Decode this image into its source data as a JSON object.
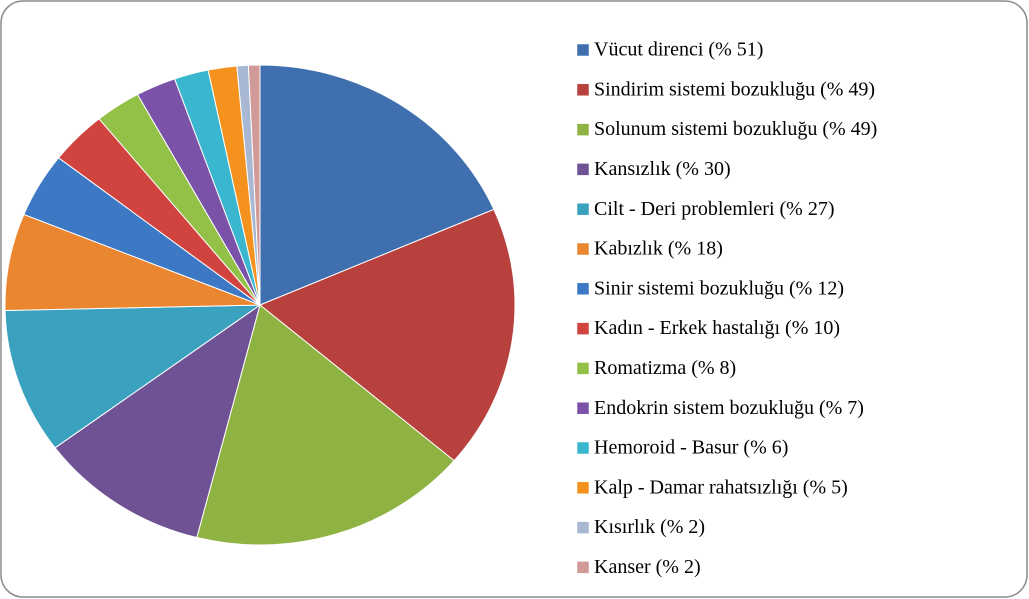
{
  "chart_data": {
    "type": "pie",
    "categories": [
      "Vücut direnci (% 51)",
      "Sindirim sistemi bozukluğu (% 49)",
      "Solunum sistemi bozukluğu  (% 49)",
      "Kansızlık (% 30)",
      "Cilt - Deri problemleri (% 27)",
      "Kabızlık (% 18)",
      "Sinir sistemi bozukluğu (% 12)",
      "Kadın - Erkek hastalığı (% 10)",
      "Romatizma (% 8)",
      "Endokrin sistem bozukluğu (% 7)",
      "Hemoroid - Basur (% 6)",
      "Kalp - Damar rahatsızlığı (% 5)",
      "Kısırlık (% 2)",
      "Kanser (% 2)"
    ],
    "values": [
      51,
      49,
      49,
      30,
      27,
      18,
      12,
      10,
      8,
      7,
      6,
      5,
      2,
      2
    ],
    "colors": [
      "#3f6fae",
      "#b8403d",
      "#8fb343",
      "#6f5294",
      "#3aa2bf",
      "#e9862f",
      "#3d78c4",
      "#d0433f",
      "#93c047",
      "#7a52a8",
      "#3bb6cf",
      "#f5921e",
      "#a8b8d2",
      "#d09a98"
    ],
    "legend": "right"
  }
}
